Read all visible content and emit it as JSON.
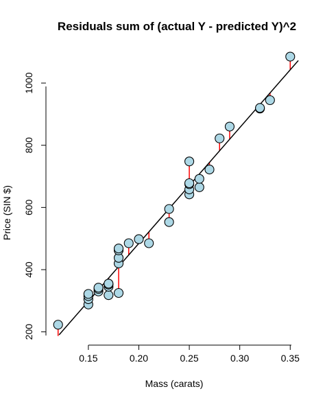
{
  "chart_data": {
    "type": "scatter",
    "title": "Residuals sum of (actual Y - predicted Y)^2",
    "xlabel": "Mass (carats)",
    "ylabel": "Price (SIN $)",
    "xlim": [
      0.11,
      0.36
    ],
    "ylim": [
      175,
      1095
    ],
    "x_ticks": [
      0.15,
      0.2,
      0.25,
      0.3,
      0.35
    ],
    "x_tick_labels": [
      "0.15",
      "0.20",
      "0.25",
      "0.30",
      "0.35"
    ],
    "y_ticks": [
      200,
      400,
      600,
      800,
      1000
    ],
    "y_tick_labels": [
      "200",
      "400",
      "600",
      "800",
      "1000"
    ],
    "regression_line": {
      "intercept": -260,
      "slope": 3722
    },
    "points": [
      {
        "x": 0.12,
        "y": 223
      },
      {
        "x": 0.15,
        "y": 288
      },
      {
        "x": 0.15,
        "y": 305
      },
      {
        "x": 0.15,
        "y": 315
      },
      {
        "x": 0.15,
        "y": 322
      },
      {
        "x": 0.16,
        "y": 330
      },
      {
        "x": 0.16,
        "y": 338
      },
      {
        "x": 0.16,
        "y": 342
      },
      {
        "x": 0.17,
        "y": 318
      },
      {
        "x": 0.17,
        "y": 345
      },
      {
        "x": 0.17,
        "y": 352
      },
      {
        "x": 0.17,
        "y": 355
      },
      {
        "x": 0.18,
        "y": 325
      },
      {
        "x": 0.18,
        "y": 420
      },
      {
        "x": 0.18,
        "y": 438
      },
      {
        "x": 0.18,
        "y": 462
      },
      {
        "x": 0.18,
        "y": 468
      },
      {
        "x": 0.19,
        "y": 485
      },
      {
        "x": 0.2,
        "y": 498
      },
      {
        "x": 0.21,
        "y": 485
      },
      {
        "x": 0.23,
        "y": 553
      },
      {
        "x": 0.23,
        "y": 595
      },
      {
        "x": 0.25,
        "y": 642
      },
      {
        "x": 0.25,
        "y": 658
      },
      {
        "x": 0.25,
        "y": 675
      },
      {
        "x": 0.25,
        "y": 678
      },
      {
        "x": 0.25,
        "y": 748
      },
      {
        "x": 0.26,
        "y": 665
      },
      {
        "x": 0.26,
        "y": 692
      },
      {
        "x": 0.27,
        "y": 722
      },
      {
        "x": 0.28,
        "y": 822
      },
      {
        "x": 0.29,
        "y": 860
      },
      {
        "x": 0.32,
        "y": 918
      },
      {
        "x": 0.32,
        "y": 920
      },
      {
        "x": 0.33,
        "y": 945
      },
      {
        "x": 0.35,
        "y": 1085
      }
    ],
    "colors": {
      "point_fill": "#add8e6",
      "point_stroke": "#000000",
      "residual": "#ff0000",
      "line": "#000000"
    },
    "grid": false,
    "legend": "none"
  }
}
